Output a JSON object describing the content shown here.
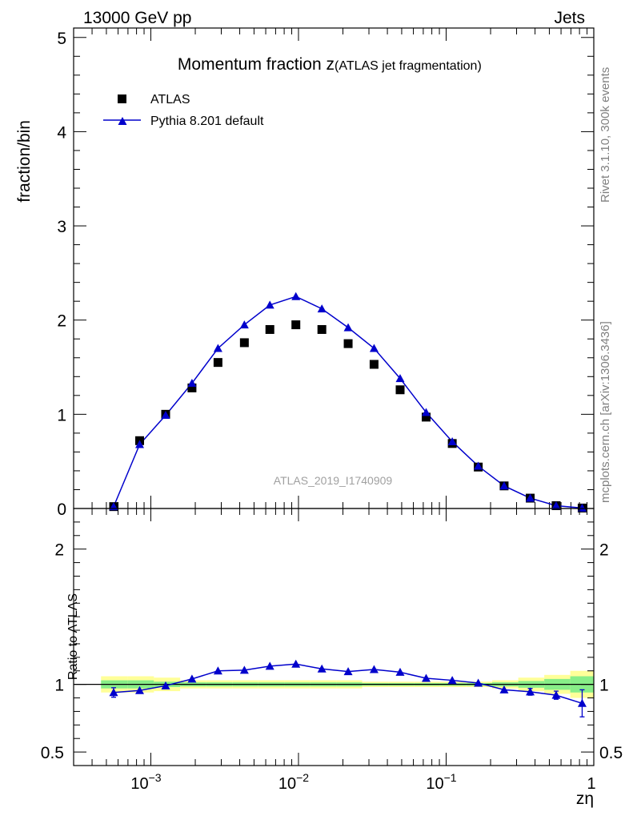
{
  "header": {
    "left": "13000 GeV pp",
    "right": "Jets"
  },
  "side_labels": {
    "rivet": "Rivet 3.1.10,  300k events",
    "mcplots": "mcplots.cern.ch [arXiv:1306.3436]"
  },
  "chart_data": [
    {
      "type": "scatter",
      "title_main": "Momentum fraction z",
      "title_sub": "(ATLAS jet fragmentation)",
      "ylabel": "fraction/bin",
      "xlabel": "",
      "xscale": "log",
      "xlim": [
        0.0003,
        1.0
      ],
      "ylim": [
        0,
        5.1
      ],
      "yticks": [
        0,
        1,
        2,
        3,
        4,
        5
      ],
      "legend_position": "top-left",
      "watermark": "ATLAS_2019_I1740909",
      "series": [
        {
          "name": "ATLAS",
          "marker": "square",
          "color": "#000000",
          "x": [
            0.00056,
            0.00084,
            0.00126,
            0.0019,
            0.00285,
            0.0043,
            0.0064,
            0.0096,
            0.0144,
            0.0217,
            0.0325,
            0.0488,
            0.0732,
            0.11,
            0.165,
            0.247,
            0.371,
            0.556,
            0.834
          ],
          "y": [
            0.02,
            0.72,
            1.0,
            1.28,
            1.55,
            1.76,
            1.9,
            1.95,
            1.9,
            1.75,
            1.53,
            1.26,
            0.97,
            0.69,
            0.44,
            0.24,
            0.11,
            0.03,
            0.005
          ]
        },
        {
          "name": "Pythia 8.201 default",
          "marker": "triangle",
          "line": true,
          "color": "#0000cc",
          "x": [
            0.00056,
            0.00084,
            0.00126,
            0.0019,
            0.00285,
            0.0043,
            0.0064,
            0.0096,
            0.0144,
            0.0217,
            0.0325,
            0.0488,
            0.0732,
            0.11,
            0.165,
            0.247,
            0.371,
            0.556,
            0.834
          ],
          "y": [
            0.02,
            0.68,
            0.99,
            1.33,
            1.7,
            1.95,
            2.16,
            2.25,
            2.12,
            1.92,
            1.7,
            1.38,
            1.02,
            0.71,
            0.45,
            0.24,
            0.11,
            0.03,
            0.005
          ]
        }
      ]
    },
    {
      "type": "scatter",
      "title": "",
      "ylabel": "Ratio to ATLAS",
      "xlabel": "zη",
      "xscale": "log",
      "xlim": [
        0.0003,
        1.0
      ],
      "ylim": [
        0.4,
        2.3
      ],
      "yticks": [
        0.5,
        1,
        2
      ],
      "xticks": [
        {
          "value": 0.001,
          "base": "10",
          "exp": "−3"
        },
        {
          "value": 0.01,
          "base": "10",
          "exp": "−2"
        },
        {
          "value": 0.1,
          "base": "10",
          "exp": "−1"
        },
        {
          "value": 1,
          "base": "1",
          "exp": ""
        }
      ],
      "reference_line": 1.0,
      "bands": {
        "x_edges": [
          0.00046,
          0.0007,
          0.00105,
          0.00158,
          0.00237,
          0.00356,
          0.00534,
          0.008,
          0.012,
          0.018,
          0.027,
          0.0405,
          0.061,
          0.091,
          0.137,
          0.205,
          0.308,
          0.462,
          0.693,
          1.0
        ],
        "yellow_half_width": [
          0.06,
          0.06,
          0.05,
          0.03,
          0.03,
          0.03,
          0.03,
          0.03,
          0.03,
          0.03,
          0.02,
          0.02,
          0.02,
          0.02,
          0.02,
          0.03,
          0.05,
          0.07,
          0.1
        ],
        "green_half_width": [
          0.03,
          0.03,
          0.02,
          0.015,
          0.015,
          0.015,
          0.015,
          0.015,
          0.015,
          0.015,
          0.01,
          0.01,
          0.01,
          0.01,
          0.01,
          0.015,
          0.025,
          0.04,
          0.06
        ],
        "yellow_color": "#ffff99",
        "green_color": "#88ee88"
      },
      "series": [
        {
          "name": "Pythia 8.201 default",
          "marker": "triangle",
          "line": true,
          "color": "#0000cc",
          "x": [
            0.00056,
            0.00084,
            0.00126,
            0.0019,
            0.00285,
            0.0043,
            0.0064,
            0.0096,
            0.0144,
            0.0217,
            0.0325,
            0.0488,
            0.0732,
            0.11,
            0.165,
            0.247,
            0.371,
            0.556,
            0.834
          ],
          "y": [
            0.94,
            0.955,
            0.99,
            1.04,
            1.1,
            1.105,
            1.135,
            1.15,
            1.115,
            1.095,
            1.11,
            1.09,
            1.045,
            1.03,
            1.01,
            0.96,
            0.945,
            0.92,
            0.86
          ],
          "err": [
            0.035,
            0.0,
            0.0,
            0.0,
            0.0,
            0.0,
            0.0,
            0.0,
            0.0,
            0.0,
            0.0,
            0.0,
            0.0,
            0.0,
            0.0,
            0.0,
            0.025,
            0.03,
            0.1
          ]
        }
      ]
    }
  ]
}
